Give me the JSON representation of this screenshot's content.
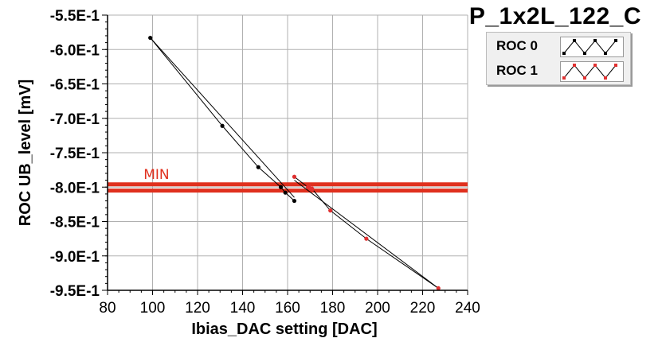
{
  "window": {
    "title": "P_1x2L_122_C"
  },
  "legend": {
    "items": [
      {
        "label": "ROC 0",
        "color": "#000000"
      },
      {
        "label": "ROC 1",
        "color": "#e03030"
      }
    ]
  },
  "chart_data": {
    "type": "line",
    "title": "P_1x2L_122_C",
    "xlabel": "Ibias_DAC setting [DAC]",
    "ylabel": "ROC UB_level [mV]",
    "xlim": [
      80,
      240
    ],
    "ylim": [
      -0.95,
      -0.55
    ],
    "xticks": [
      "80",
      "100",
      "120",
      "140",
      "160",
      "180",
      "200",
      "220",
      "240"
    ],
    "yticks": [
      "-5.5E-1",
      "-6.0E-1",
      "-6.5E-1",
      "-7.0E-1",
      "-7.5E-1",
      "-8.0E-1",
      "-8.5E-1",
      "-9.0E-1",
      "-9.5E-1"
    ],
    "grid": true,
    "legend_position": "top-right",
    "series": [
      {
        "name": "ROC 0",
        "color": "#000000",
        "x": [
          99,
          131,
          147,
          157,
          159,
          163
        ],
        "y": [
          -0.583,
          -0.711,
          -0.771,
          -0.8,
          -0.808,
          -0.82
        ],
        "fit_x": [
          99,
          163
        ],
        "fit_y": [
          -0.583,
          -0.815
        ]
      },
      {
        "name": "ROC 1",
        "color": "#e03030",
        "x": [
          163,
          169,
          171,
          179,
          195,
          227
        ],
        "y": [
          -0.785,
          -0.8,
          -0.803,
          -0.834,
          -0.875,
          -0.947
        ],
        "fit_x": [
          163,
          227
        ],
        "fit_y": [
          -0.79,
          -0.947
        ]
      }
    ],
    "threshold": {
      "label": "MIN",
      "color": "#e0301e",
      "values": [
        -0.796,
        -0.805
      ]
    },
    "marker": {
      "x": 170,
      "y": -0.8,
      "symbol": "+"
    }
  }
}
